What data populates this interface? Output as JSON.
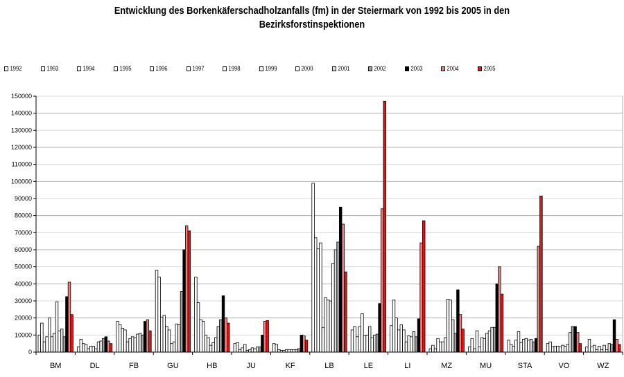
{
  "chart_data": {
    "type": "bar",
    "title": "Entwicklung des Borkenkäferschadholzanfalls (fm) in der Steiermark von 1992 bis 2005 in den Bezirksforstinspektionen",
    "title_lines": [
      "Entwicklung des Borkenkäferschadholzanfalls (fm) in der Steiermark von 1992 bis 2005 in den",
      "Bezirksforstinspektionen"
    ],
    "xlabel": "",
    "ylabel": "",
    "ylim": [
      0,
      150000
    ],
    "yticks": [
      0,
      10000,
      20000,
      30000,
      40000,
      50000,
      60000,
      70000,
      80000,
      90000,
      100000,
      110000,
      120000,
      130000,
      140000,
      150000
    ],
    "grid": true,
    "legend_position": "top",
    "categories": [
      "BM",
      "DL",
      "FB",
      "GU",
      "HB",
      "JU",
      "KF",
      "LB",
      "LE",
      "LI",
      "MZ",
      "MU",
      "STA",
      "VO",
      "WZ"
    ],
    "series": [
      {
        "name": "1992",
        "color": "#ffffff",
        "values": [
          10000,
          3000,
          18000,
          48000,
          44000,
          5000,
          5000,
          99000,
          13000,
          15500,
          2000,
          3000,
          7000,
          5000,
          3000
        ]
      },
      {
        "name": "1993",
        "color": "#ffffff",
        "values": [
          17000,
          7500,
          16000,
          44000,
          29000,
          5500,
          4500,
          67000,
          15000,
          30500,
          4000,
          8000,
          4500,
          6000,
          7500
        ]
      },
      {
        "name": "1994",
        "color": "#ffffff",
        "values": [
          6000,
          5000,
          14000,
          20500,
          19000,
          1500,
          1500,
          60500,
          9000,
          20000,
          2000,
          2000,
          3500,
          3000,
          3000
        ]
      },
      {
        "name": "1995",
        "color": "#ffffff",
        "values": [
          9000,
          4500,
          13000,
          21500,
          18000,
          2500,
          1000,
          64000,
          15000,
          13000,
          8000,
          12500,
          7000,
          3500,
          4000
        ]
      },
      {
        "name": "1996",
        "color": "#fdfdfd",
        "values": [
          20000,
          2000,
          6000,
          15000,
          10000,
          4500,
          1000,
          14500,
          22500,
          16000,
          6000,
          3000,
          12000,
          3500,
          1500
        ]
      },
      {
        "name": "1997",
        "color": "#fbfbfb",
        "values": [
          9000,
          3500,
          8000,
          13000,
          8500,
          1000,
          1500,
          32000,
          9500,
          13000,
          6000,
          8500,
          5500,
          3000,
          3500
        ]
      },
      {
        "name": "1998",
        "color": "#f8f8f8",
        "values": [
          11000,
          3500,
          9000,
          5000,
          4000,
          1500,
          1500,
          30500,
          10000,
          6000,
          8500,
          8000,
          7500,
          4000,
          1500
        ]
      },
      {
        "name": "1999",
        "color": "#f4f4f4",
        "values": [
          29500,
          2000,
          8500,
          6000,
          5500,
          2500,
          1500,
          30000,
          15000,
          9500,
          31000,
          11000,
          8000,
          3500,
          4000
        ]
      },
      {
        "name": "2000",
        "color": "#ffffff",
        "values": [
          12500,
          6000,
          10500,
          16500,
          8500,
          2000,
          1500,
          52000,
          8500,
          9000,
          30500,
          12500,
          7000,
          4500,
          1500
        ]
      },
      {
        "name": "2001",
        "color": "#e0e0e0",
        "values": [
          13500,
          6500,
          11000,
          16000,
          15000,
          3000,
          1500,
          60000,
          10000,
          12000,
          19000,
          14500,
          7500,
          11500,
          5000
        ]
      },
      {
        "name": "2002",
        "color": "#a0a0a0",
        "values": [
          9000,
          8000,
          10000,
          35500,
          19000,
          3000,
          2000,
          64500,
          10500,
          9000,
          11000,
          14500,
          6000,
          15000,
          4500
        ]
      },
      {
        "name": "2003",
        "color": "#000000",
        "values": [
          32500,
          9000,
          18000,
          60000,
          33000,
          10000,
          10000,
          85000,
          28500,
          19500,
          36500,
          40000,
          8000,
          15000,
          19000
        ]
      },
      {
        "name": "2004",
        "color": "#f08080",
        "values": [
          41000,
          6500,
          19000,
          74000,
          20000,
          18000,
          9500,
          75000,
          84000,
          64000,
          22000,
          50000,
          62000,
          11500,
          7500
        ]
      },
      {
        "name": "2005",
        "color": "#ee1111",
        "values": [
          22000,
          5000,
          12500,
          71000,
          17000,
          18500,
          7000,
          47000,
          147000,
          77000,
          13500,
          34000,
          91500,
          5000,
          4500
        ]
      }
    ]
  }
}
